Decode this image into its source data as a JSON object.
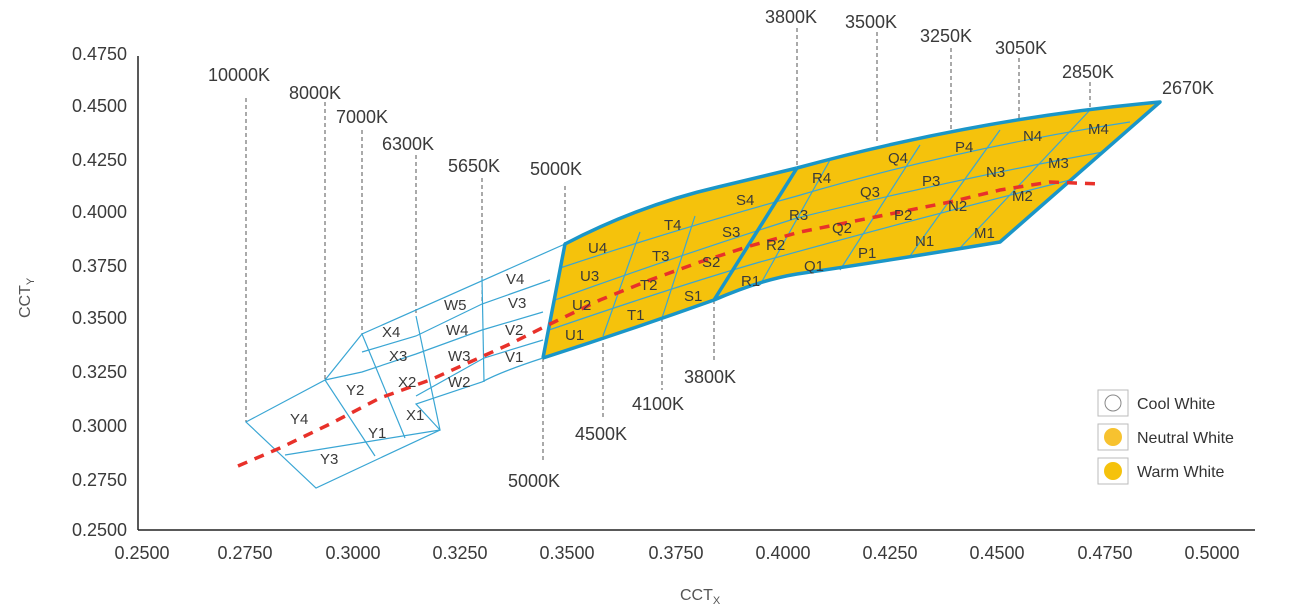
{
  "chart_data": {
    "type": "scatter",
    "xlabel": "CCT",
    "xlabel_sub": "X",
    "ylabel": "CCT",
    "ylabel_sub": "Y",
    "xlim": [
      0.25,
      0.5
    ],
    "ylim": [
      0.25,
      0.475
    ],
    "x_ticks": [
      "0.2500",
      "0.2750",
      "0.3000",
      "0.3250",
      "0.3500",
      "0.3750",
      "0.4000",
      "0.4250",
      "0.4500",
      "0.4750",
      "0.5000"
    ],
    "y_ticks": [
      "0.2500",
      "0.2750",
      "0.3000",
      "0.3250",
      "0.3500",
      "0.3750",
      "0.4000",
      "0.4250",
      "0.4500",
      "0.4750"
    ],
    "grid": false,
    "legend_position": "bottom-right",
    "legend": [
      {
        "label": "Cool White",
        "color": "#ffffff"
      },
      {
        "label": "Neutral White",
        "color": "#f7c22f"
      },
      {
        "label": "Warm White",
        "color": "#f5c20c"
      }
    ],
    "colors": {
      "fill": "#f5c20c",
      "outline": "#1a96c8",
      "grid_line": "#3aa6d4",
      "curve": "#e8312a",
      "guide": "#555555"
    },
    "cct_labels_top": [
      {
        "label": "10000K",
        "x": 0.2755,
        "y": 0.3001
      },
      {
        "label": "8000K",
        "x": 0.294,
        "y": 0.3203
      },
      {
        "label": "7000K",
        "x": 0.303,
        "y": 0.342
      },
      {
        "label": "6300K",
        "x": 0.315,
        "y": 0.3505
      },
      {
        "label": "5650K",
        "x": 0.329,
        "y": 0.3535
      },
      {
        "label": "5000K",
        "x": 0.348,
        "y": 0.387
      },
      {
        "label": "3800K",
        "x": 0.3994,
        "y": 0.4215
      },
      {
        "label": "3500K",
        "x": 0.4195,
        "y": 0.4346
      },
      {
        "label": "3250K",
        "x": 0.437,
        "y": 0.4385
      },
      {
        "label": "3050K",
        "x": 0.45,
        "y": 0.4455
      },
      {
        "label": "2850K",
        "x": 0.4665,
        "y": 0.4495
      },
      {
        "label": "2670K",
        "x": 0.4855,
        "y": 0.4525
      }
    ],
    "cct_labels_bottom": [
      {
        "label": "5000K",
        "x": 0.3445,
        "y": 0.331
      },
      {
        "label": "4500K",
        "x": 0.3575,
        "y": 0.3405
      },
      {
        "label": "4100K",
        "x": 0.3695,
        "y": 0.349
      },
      {
        "label": "3800K",
        "x": 0.384,
        "y": 0.358
      }
    ],
    "bins_cool": [
      "Y1",
      "Y2",
      "Y3",
      "Y4",
      "X1",
      "X2",
      "X3",
      "X4",
      "W2",
      "W3",
      "W4",
      "W5",
      "V1",
      "V2",
      "V3",
      "V4"
    ],
    "bins_neutral": [
      "U1",
      "U2",
      "U3",
      "U4",
      "T1",
      "T2",
      "T3",
      "T4",
      "S1",
      "S2",
      "S3",
      "S4"
    ],
    "bins_warm": [
      "R1",
      "R2",
      "R3",
      "R4",
      "Q1",
      "Q2",
      "Q3",
      "Q4",
      "P1",
      "P2",
      "P3",
      "P4",
      "N1",
      "N2",
      "N3",
      "N4",
      "M1",
      "M2",
      "M3",
      "M4"
    ],
    "planckian_locus": [
      [
        0.2795,
        0.285
      ],
      [
        0.3,
        0.3055
      ],
      [
        0.32,
        0.323
      ],
      [
        0.34,
        0.342
      ],
      [
        0.36,
        0.359
      ],
      [
        0.38,
        0.374
      ],
      [
        0.4,
        0.388
      ],
      [
        0.42,
        0.4
      ],
      [
        0.44,
        0.409
      ],
      [
        0.46,
        0.415
      ],
      [
        0.4705,
        0.419
      ]
    ]
  }
}
